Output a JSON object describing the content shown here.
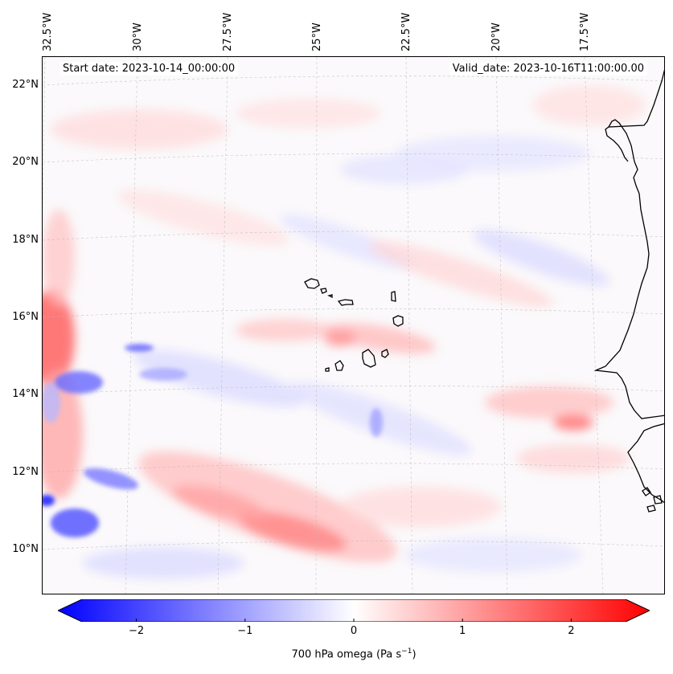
{
  "header": {
    "start_date": "Start date: 2023-10-14_00:00:00",
    "valid_date": "Valid_date: 2023-10-16T11:00:00.00"
  },
  "axes": {
    "lon_labels": [
      "32.5°W",
      "30°W",
      "27.5°W",
      "25°W",
      "22.5°W",
      "20°W",
      "17.5°W"
    ],
    "lat_labels": [
      "22°N",
      "20°N",
      "18°N",
      "16°N",
      "14°N",
      "12°N",
      "10°N"
    ]
  },
  "colorbar": {
    "label_main": "700 hPa omega (Pa s",
    "label_sup": "−1",
    "label_end": ")",
    "ticks": [
      {
        "value": -2,
        "text": "−2"
      },
      {
        "value": -1,
        "text": "−1"
      },
      {
        "value": 0,
        "text": "0"
      },
      {
        "value": 1,
        "text": "1"
      },
      {
        "value": 2,
        "text": "2"
      }
    ],
    "min": -2.75,
    "max": 2.75,
    "cmap": "bwr",
    "colors": {
      "negative": "#0000ff",
      "zero": "#ffffff",
      "positive": "#ff0000"
    }
  },
  "map": {
    "variable": "700 hPa omega",
    "region": "Cape Verde / West African coast"
  }
}
